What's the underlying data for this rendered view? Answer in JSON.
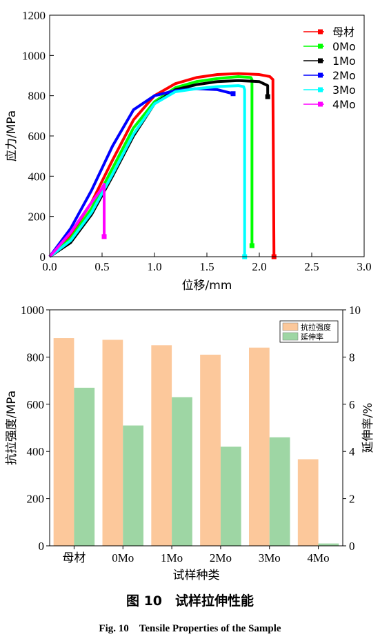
{
  "chart_data": [
    {
      "type": "line",
      "xlabel": "位移/mm",
      "ylabel": "应力/MPa",
      "xlim": [
        0,
        3.0
      ],
      "ylim": [
        0,
        1200
      ],
      "xticks": [
        "0.0",
        "0.5",
        "1.0",
        "1.5",
        "2.0",
        "2.5",
        "3.0"
      ],
      "yticks": [
        "0",
        "200",
        "400",
        "600",
        "800",
        "1000",
        "1200"
      ],
      "legend_position": "top-right",
      "series": [
        {
          "name": "母材",
          "color": "#ff0000",
          "x": [
            0,
            0.2,
            0.4,
            0.6,
            0.8,
            1.0,
            1.2,
            1.4,
            1.6,
            1.8,
            2.0,
            2.1,
            2.13,
            2.13,
            2.14
          ],
          "y": [
            0,
            110,
            270,
            480,
            680,
            800,
            860,
            890,
            905,
            910,
            905,
            895,
            880,
            815,
            0
          ]
        },
        {
          "name": "0Mo",
          "color": "#00ff00",
          "x": [
            0,
            0.2,
            0.4,
            0.6,
            0.8,
            1.0,
            1.2,
            1.4,
            1.6,
            1.8,
            1.92,
            1.93,
            1.93
          ],
          "y": [
            0,
            90,
            240,
            440,
            640,
            770,
            840,
            870,
            885,
            895,
            890,
            880,
            55
          ]
        },
        {
          "name": "1Mo",
          "color": "#000000",
          "x": [
            0,
            0.2,
            0.4,
            0.6,
            0.8,
            1.0,
            1.2,
            1.4,
            1.6,
            1.8,
            2.0,
            2.08,
            2.08
          ],
          "y": [
            0,
            70,
            210,
            400,
            600,
            760,
            830,
            855,
            870,
            875,
            870,
            850,
            795
          ]
        },
        {
          "name": "2Mo",
          "color": "#0000ff",
          "x": [
            0,
            0.2,
            0.4,
            0.6,
            0.8,
            1.0,
            1.2,
            1.4,
            1.6,
            1.75
          ],
          "y": [
            0,
            140,
            330,
            550,
            730,
            800,
            825,
            835,
            830,
            810
          ]
        },
        {
          "name": "3Mo",
          "color": "#00ffff",
          "x": [
            0,
            0.2,
            0.4,
            0.6,
            0.8,
            1.0,
            1.2,
            1.4,
            1.6,
            1.8,
            1.85,
            1.86,
            1.86
          ],
          "y": [
            0,
            80,
            220,
            410,
            610,
            760,
            820,
            835,
            845,
            850,
            845,
            830,
            0
          ]
        },
        {
          "name": "4Mo",
          "color": "#ff00ff",
          "x": [
            0,
            0.2,
            0.4,
            0.5,
            0.52,
            0.52
          ],
          "y": [
            0,
            120,
            270,
            340,
            360,
            100
          ]
        }
      ]
    },
    {
      "type": "bar",
      "xlabel": "试样种类",
      "ylabel": "抗拉强度/MPa",
      "ylabel_right": "延伸率/%",
      "categories": [
        "母材",
        "0Mo",
        "1Mo",
        "2Mo",
        "3Mo",
        "4Mo"
      ],
      "ylim": [
        0,
        1000
      ],
      "ylim_right": [
        0,
        10
      ],
      "yticks": [
        "0",
        "200",
        "400",
        "600",
        "800",
        "1000"
      ],
      "yticks_right": [
        "0",
        "2",
        "4",
        "6",
        "8",
        "10"
      ],
      "legend_position": "top-right",
      "series": [
        {
          "name": "抗拉强度",
          "axis": "left",
          "color": "#fcc89b",
          "values": [
            880,
            873,
            850,
            810,
            840,
            367
          ]
        },
        {
          "name": "延伸率",
          "axis": "right",
          "color": "#9ed6a4",
          "values": [
            6.7,
            5.1,
            6.3,
            4.2,
            4.6,
            0.1
          ]
        }
      ]
    }
  ],
  "caption": {
    "chinese": "图 10　试样拉伸性能",
    "english": "Fig. 10　Tensile Properties of the Sample"
  }
}
